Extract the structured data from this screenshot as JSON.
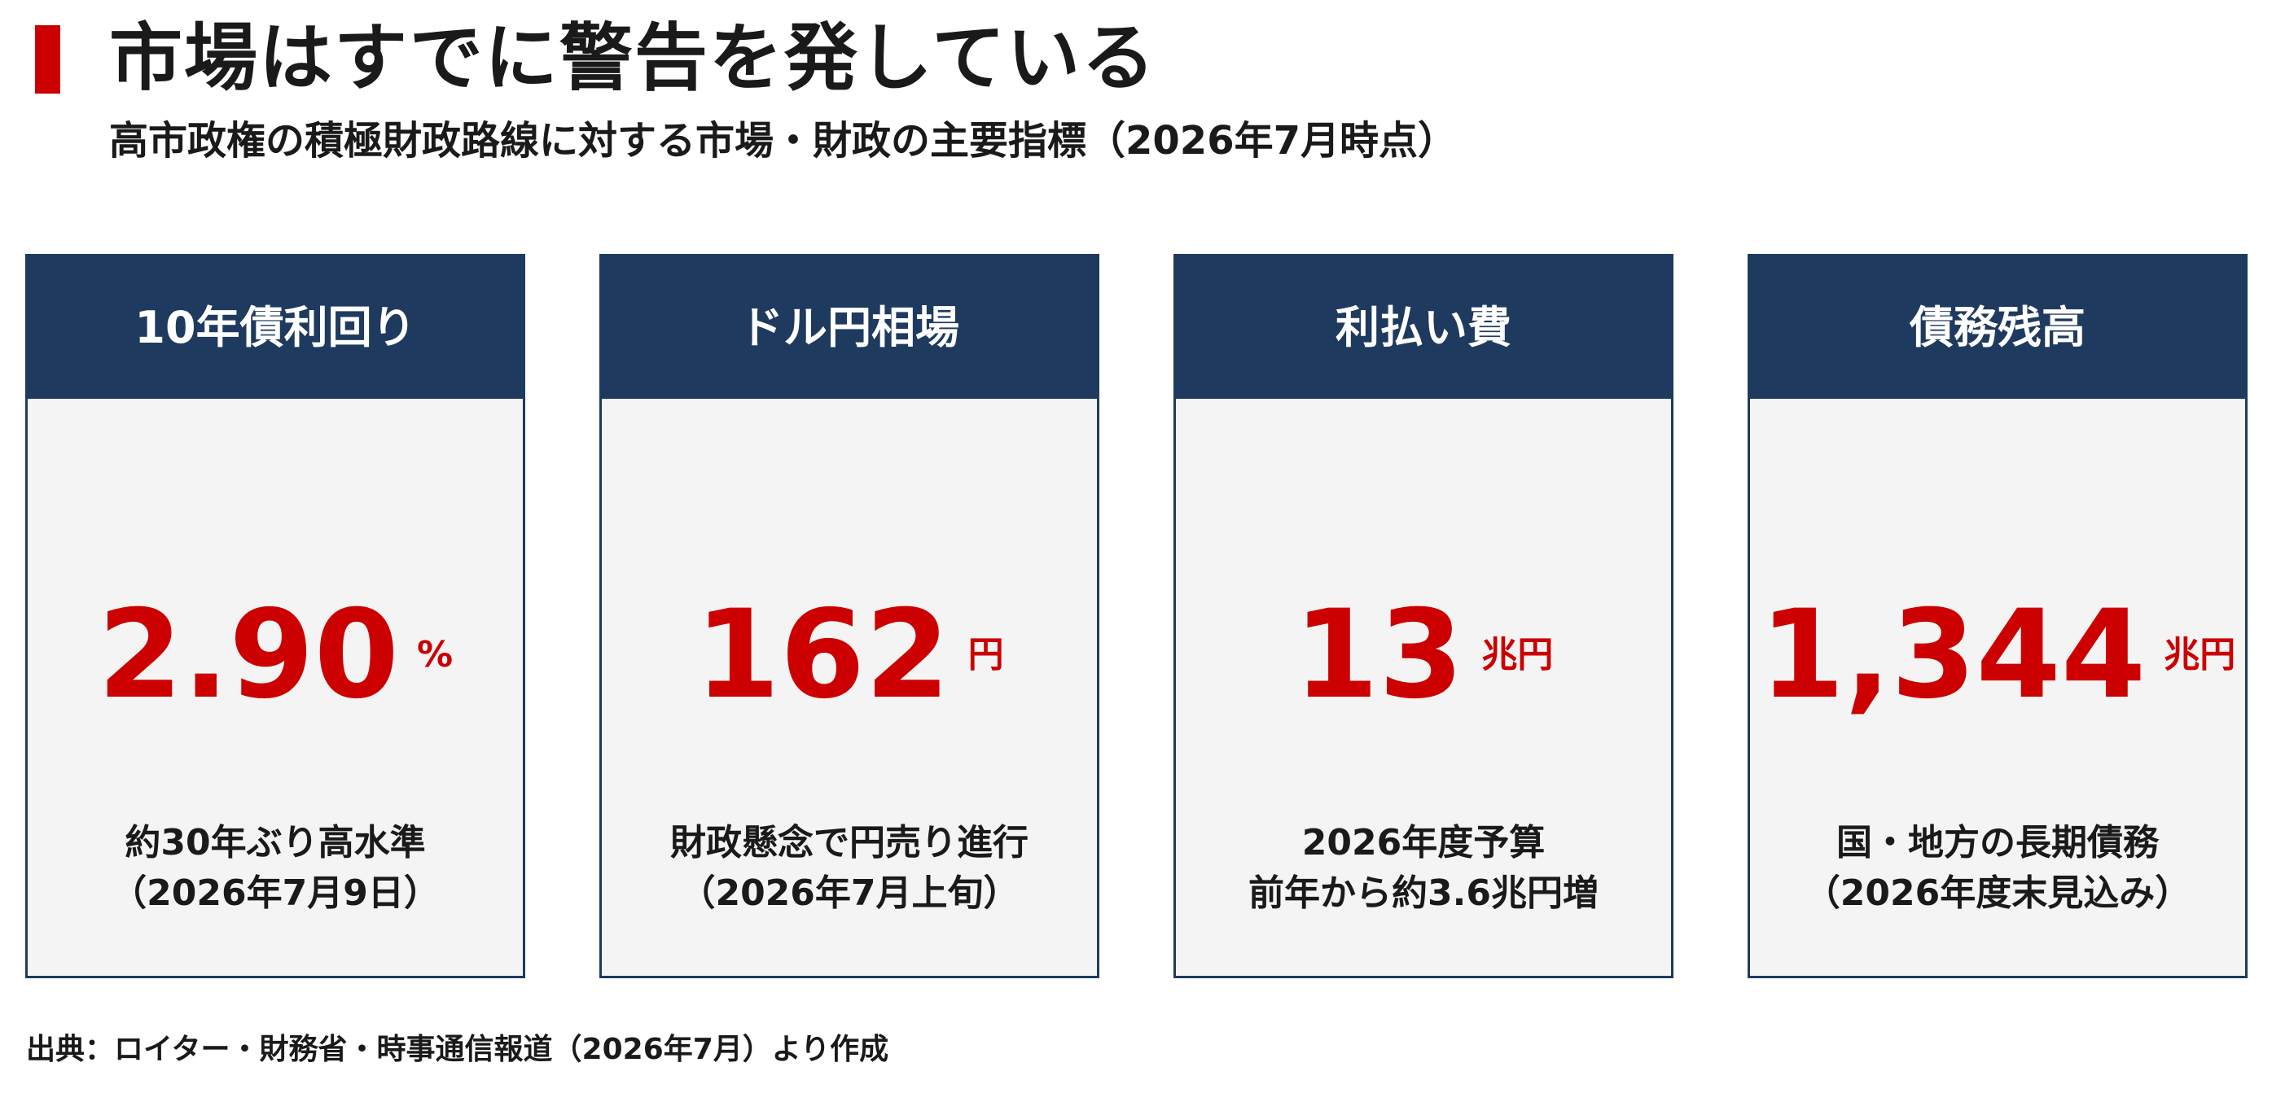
{
  "colors": {
    "accent": "#cc0000",
    "header_navy": "#1f3a5f",
    "card_background": "#f4f4f4",
    "text": "#1a1a1a"
  },
  "title": "市場はすでに警告を発している",
  "subtitle": "高市政権の積極財政路線に対する市場・財政の主要指標（2026年7月時点）",
  "cards": [
    {
      "header": "10年債利回り",
      "value": "2.90",
      "unit": "%",
      "desc_line1": "約30年ぶり高水準",
      "desc_line2": "（2026年7月9日）"
    },
    {
      "header": "ドル円相場",
      "value": "162",
      "unit": "円",
      "desc_line1": "財政懸念で円売り進行",
      "desc_line2": "（2026年7月上旬）"
    },
    {
      "header": "利払い費",
      "value": "13",
      "unit": "兆円",
      "desc_line1": "2026年度予算",
      "desc_line2": "前年から約3.6兆円増"
    },
    {
      "header": "債務残高",
      "value": "1,344",
      "unit": "兆円",
      "desc_line1": "国・地方の長期債務",
      "desc_line2": "（2026年度末見込み）"
    }
  ],
  "source": "出典：ロイター・財務省・時事通信報道（2026年7月）より作成"
}
